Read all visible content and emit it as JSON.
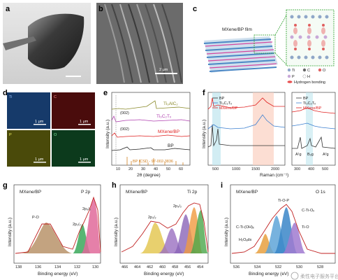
{
  "panels": {
    "a": {
      "label": "a"
    },
    "b": {
      "label": "b",
      "scalebar": "2 μm"
    },
    "c": {
      "label": "c",
      "title": "MXene/BP film",
      "legend": [
        {
          "sym": "Ti",
          "color": "#8fa7c8"
        },
        {
          "sym": "C",
          "color": "#666666"
        },
        {
          "sym": "O",
          "color": "#e06060"
        },
        {
          "sym": "P",
          "color": "#c8a8d8"
        },
        {
          "sym": "H",
          "color": "#ffffff"
        }
      ],
      "hbond": "Hydrogen bonding"
    },
    "d": {
      "label": "d",
      "maps": [
        {
          "el": "Ti",
          "scale": "1 μm",
          "color": "#3a6fb8"
        },
        {
          "el": "C",
          "scale": "1 μm",
          "color": "#b82a2a"
        },
        {
          "el": "P",
          "scale": "1 μm",
          "color": "#c8c830"
        },
        {
          "el": "O",
          "scale": "1 μm",
          "color": "#30a060"
        }
      ]
    },
    "e": {
      "label": "e",
      "xlabel": "2θ (degree)",
      "ylabel": "Intensity (a.u.)",
      "xticks": [
        "10",
        "20",
        "30",
        "40",
        "50",
        "60"
      ],
      "traces": [
        "Ti₃AlC₂",
        "Ti₃C₂Tₓ",
        "MXene/BP",
        "BP"
      ],
      "peaks": [
        "(002)",
        "(002)"
      ],
      "ref": "BP ICSD - 97-002-3836"
    },
    "f": {
      "label": "f",
      "xlabel": "Raman (cm⁻¹)",
      "ylabel": "Intensity (a.u.)",
      "xticks": [
        "500",
        "1000",
        "1500",
        "2000"
      ],
      "xticks2": [
        "300",
        "400",
        "500"
      ],
      "legend": [
        "BP",
        "Ti₃C₂Tₓ",
        "MXene/BP"
      ],
      "peaks": [
        "A¹g",
        "B₂g",
        "A²g"
      ]
    },
    "g": {
      "label": "g",
      "title": "MXene/BP",
      "core": "P 2p",
      "xlabel": "Binding energy (eV)",
      "ylabel": "Intensity (a.u.)",
      "xticks": [
        "138",
        "136",
        "134",
        "132",
        "130"
      ],
      "peaks": [
        "P-O",
        "2p₁/₂",
        "2p₃/₂"
      ]
    },
    "h": {
      "label": "h",
      "title": "MXene/BP",
      "core": "Ti 2p",
      "xlabel": "Binding energy (eV)",
      "ylabel": "Intensity (a.u.)",
      "xticks": [
        "466",
        "464",
        "462",
        "460",
        "458",
        "456",
        "454"
      ],
      "peaks": [
        "2p₁/₂",
        "2p₃/₂"
      ]
    },
    "i": {
      "label": "i",
      "title": "MXene/BP",
      "core": "O 1s",
      "xlabel": "Binding energy (eV)",
      "ylabel": "Intensity (a.u.)",
      "xticks": [
        "536",
        "534",
        "532",
        "530",
        "528"
      ],
      "peaks": [
        "Ti-O-P",
        "C-Ti-Oₓ",
        "C-Ti-(OH)ₓ",
        "Ti-O",
        "H₂Oₐds"
      ]
    }
  },
  "watermark": "柔性电子服务平台"
}
